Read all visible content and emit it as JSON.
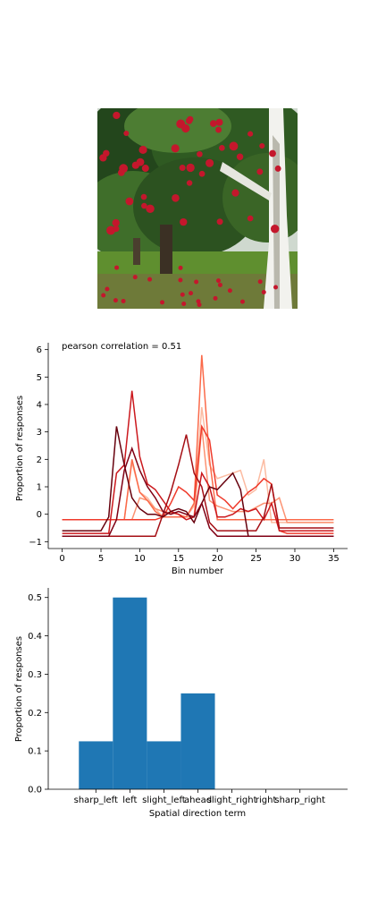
{
  "photo": {
    "subject": "apple-orchard-photo",
    "colors": {
      "sky": "#cfd9cf",
      "foliage_dark": "#23461c",
      "foliage": "#3f6e2a",
      "grass": "#5f8f2f",
      "apple": "#c4172c",
      "trunk": "#f2f2ee",
      "shadow": "#2b2418"
    }
  },
  "chart_data": [
    {
      "type": "line",
      "annotation": "pearson correlation = 0.51",
      "xlabel": "Bin number",
      "ylabel": "Proportion of responses",
      "xlim": [
        -1.8,
        36.8
      ],
      "ylim": [
        -1.25,
        6.25
      ],
      "xticks": [
        0,
        5,
        10,
        15,
        20,
        25,
        30,
        35
      ],
      "yticks": [
        -1,
        0,
        1,
        2,
        3,
        4,
        5,
        6
      ],
      "grid": false,
      "legend": "none",
      "series": [
        {
          "color": "#fcbba1",
          "points": [
            [
              0,
              -0.2
            ],
            [
              8,
              -0.2
            ],
            [
              9,
              1.9
            ],
            [
              10,
              0.8
            ],
            [
              11,
              0.6
            ],
            [
              12,
              0.2
            ],
            [
              13,
              -0.1
            ],
            [
              16,
              -0.1
            ],
            [
              17,
              0.3
            ],
            [
              18,
              3.9
            ],
            [
              19,
              1.8
            ],
            [
              20,
              1.3
            ],
            [
              21,
              1.4
            ],
            [
              22,
              1.5
            ],
            [
              23,
              1.6
            ],
            [
              24,
              0.7
            ],
            [
              25,
              0.9
            ],
            [
              26,
              2.0
            ],
            [
              27,
              -0.3
            ],
            [
              35,
              -0.3
            ]
          ]
        },
        {
          "color": "#fc9272",
          "points": [
            [
              0,
              -0.2
            ],
            [
              9,
              -0.2
            ],
            [
              10,
              0.6
            ],
            [
              11,
              0.5
            ],
            [
              12,
              0.2
            ],
            [
              13,
              0.1
            ],
            [
              15,
              0.0
            ],
            [
              16,
              -0.1
            ],
            [
              17,
              -0.1
            ],
            [
              18,
              3.2
            ],
            [
              19,
              0.5
            ],
            [
              20,
              0.3
            ],
            [
              22,
              0.1
            ],
            [
              24,
              0.1
            ],
            [
              26,
              0.4
            ],
            [
              27,
              0.4
            ],
            [
              28,
              0.6
            ],
            [
              29,
              -0.3
            ],
            [
              35,
              -0.3
            ]
          ]
        },
        {
          "color": "#fb6a4a",
          "points": [
            [
              0,
              -0.2
            ],
            [
              8,
              -0.2
            ],
            [
              9,
              2.0
            ],
            [
              10,
              0.8
            ],
            [
              11,
              0.5
            ],
            [
              12,
              0.1
            ],
            [
              13,
              -0.1
            ],
            [
              16,
              -0.1
            ],
            [
              17,
              0.4
            ],
            [
              18,
              5.8
            ],
            [
              19,
              2.0
            ],
            [
              20,
              -0.2
            ],
            [
              35,
              -0.2
            ]
          ]
        },
        {
          "color": "#ef3b2c",
          "points": [
            [
              0,
              -0.2
            ],
            [
              12,
              -0.2
            ],
            [
              13,
              -0.1
            ],
            [
              14,
              0.4
            ],
            [
              15,
              1.0
            ],
            [
              16,
              0.8
            ],
            [
              17,
              0.5
            ],
            [
              18,
              3.2
            ],
            [
              19,
              2.7
            ],
            [
              20,
              0.7
            ],
            [
              21,
              0.5
            ],
            [
              22,
              0.2
            ],
            [
              23,
              0.5
            ],
            [
              24,
              0.8
            ],
            [
              25,
              1.0
            ],
            [
              26,
              1.3
            ],
            [
              27,
              1.1
            ],
            [
              28,
              -0.6
            ],
            [
              29,
              -0.7
            ],
            [
              35,
              -0.7
            ]
          ]
        },
        {
          "color": "#cb181d",
          "points": [
            [
              0,
              -0.7
            ],
            [
              6,
              -0.7
            ],
            [
              7,
              1.5
            ],
            [
              8,
              1.8
            ],
            [
              9,
              4.5
            ],
            [
              10,
              2.1
            ],
            [
              11,
              1.1
            ],
            [
              12,
              0.9
            ],
            [
              13,
              0.5
            ],
            [
              14,
              0.1
            ],
            [
              15,
              0.0
            ],
            [
              16,
              -0.2
            ],
            [
              17,
              -0.1
            ],
            [
              18,
              1.5
            ],
            [
              19,
              1.0
            ],
            [
              20,
              -0.1
            ],
            [
              21,
              -0.1
            ],
            [
              22,
              0.0
            ],
            [
              23,
              0.2
            ],
            [
              24,
              0.1
            ],
            [
              25,
              0.2
            ],
            [
              26,
              -0.2
            ],
            [
              27,
              0.4
            ],
            [
              28,
              -0.6
            ],
            [
              35,
              -0.6
            ]
          ]
        },
        {
          "color": "#a50f15",
          "points": [
            [
              0,
              -0.8
            ],
            [
              12,
              -0.8
            ],
            [
              13,
              0.0
            ],
            [
              14,
              0.8
            ],
            [
              15,
              1.8
            ],
            [
              16,
              2.9
            ],
            [
              17,
              1.5
            ],
            [
              18,
              1.0
            ],
            [
              19,
              -0.3
            ],
            [
              20,
              -0.6
            ],
            [
              25,
              -0.6
            ],
            [
              26,
              -0.1
            ],
            [
              27,
              1.1
            ],
            [
              28,
              -0.5
            ],
            [
              35,
              -0.5
            ]
          ]
        },
        {
          "color": "#67000d",
          "points": [
            [
              0,
              -0.6
            ],
            [
              5,
              -0.6
            ],
            [
              6,
              -0.1
            ],
            [
              7,
              3.2
            ],
            [
              8,
              1.8
            ],
            [
              9,
              0.6
            ],
            [
              10,
              0.2
            ],
            [
              11,
              0.0
            ],
            [
              12,
              0.0
            ],
            [
              13,
              -0.1
            ],
            [
              14,
              0.1
            ],
            [
              15,
              0.2
            ],
            [
              16,
              0.1
            ],
            [
              17,
              -0.3
            ],
            [
              18,
              0.4
            ],
            [
              19,
              1.0
            ],
            [
              20,
              0.9
            ],
            [
              21,
              1.2
            ],
            [
              22,
              1.5
            ],
            [
              23,
              0.9
            ],
            [
              24,
              -0.8
            ],
            [
              35,
              -0.8
            ]
          ]
        },
        {
          "color": "#800014",
          "points": [
            [
              0,
              -0.8
            ],
            [
              6,
              -0.8
            ],
            [
              7,
              -0.2
            ],
            [
              8,
              1.6
            ],
            [
              9,
              2.4
            ],
            [
              10,
              1.6
            ],
            [
              11,
              1.0
            ],
            [
              12,
              0.6
            ],
            [
              13,
              0.1
            ],
            [
              14,
              0.0
            ],
            [
              15,
              0.1
            ],
            [
              16,
              0.0
            ],
            [
              17,
              -0.1
            ],
            [
              18,
              0.4
            ],
            [
              19,
              -0.5
            ],
            [
              20,
              -0.8
            ],
            [
              35,
              -0.8
            ]
          ]
        }
      ]
    },
    {
      "type": "bar",
      "xlabel": "Spatial direction term",
      "ylabel": "Proportion of responses",
      "categories": [
        "sharp_left",
        "left",
        "slight_left",
        "ahead",
        "slight_right",
        "right",
        "sharp_right"
      ],
      "values": [
        0.125,
        0.5,
        0.125,
        0.25,
        0,
        0,
        0
      ],
      "ylim": [
        0,
        0.525
      ],
      "yticks": [
        0.0,
        0.1,
        0.2,
        0.3,
        0.4,
        0.5
      ],
      "color": "#1f77b4",
      "grid": false,
      "legend": "none"
    }
  ]
}
